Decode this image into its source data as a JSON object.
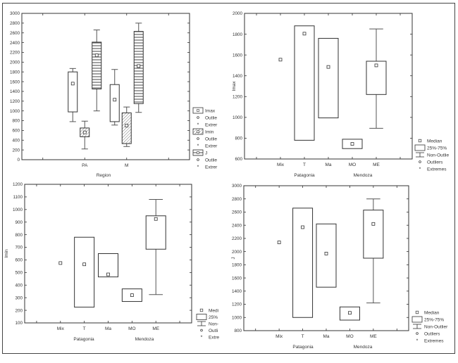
{
  "chart_data": [
    {
      "type": "box",
      "title": "",
      "xlabel": "Region",
      "ylabel": "",
      "ylim": [
        0,
        3000
      ],
      "yticks": [
        0,
        200,
        400,
        600,
        800,
        1000,
        1200,
        1400,
        1600,
        1800,
        2000,
        2200,
        2400,
        2600,
        2800,
        3000
      ],
      "categories": [
        "PA",
        "M"
      ],
      "groups": [],
      "series": [
        {
          "name": "Imax",
          "pattern": "none",
          "boxes": [
            {
              "min": 780,
              "q1": 980,
              "median": 1560,
              "q3": 1800,
              "max": 1870
            },
            {
              "min": 710,
              "q1": 780,
              "median": 1230,
              "q3": 1540,
              "max": 1850
            }
          ]
        },
        {
          "name": "Imin",
          "pattern": "diagonal-hatch",
          "boxes": [
            {
              "min": 220,
              "q1": 470,
              "median": 560,
              "q3": 650,
              "max": 790
            },
            {
              "min": 270,
              "q1": 330,
              "median": 700,
              "q3": 960,
              "max": 1080
            }
          ]
        },
        {
          "name": "J",
          "pattern": "horizontal-stripes",
          "boxes": [
            {
              "min": 1000,
              "q1": 1450,
              "median": 2140,
              "q3": 2410,
              "max": 2660
            },
            {
              "min": 970,
              "q1": 1150,
              "median": 1920,
              "q3": 2630,
              "max": 2800
            }
          ]
        }
      ],
      "legend": [
        "Imax",
        "Outlie",
        "Extrer",
        "Imin",
        "Outlie",
        "Extrer",
        "J",
        "Outlie",
        "Extrer"
      ],
      "legend_placement": "right"
    },
    {
      "type": "box",
      "title": "",
      "xlabel": "",
      "ylabel": "Imax",
      "ylim": [
        600,
        2000
      ],
      "yticks": [
        600,
        800,
        1000,
        1200,
        1400,
        1600,
        1800,
        2000
      ],
      "categories": [
        "Mix",
        "T",
        "Ma",
        "MO",
        "ME"
      ],
      "groups": [
        "Patagonia",
        "Mendoza"
      ],
      "series": [
        {
          "name": "",
          "pattern": "none",
          "boxes": [
            {
              "min": null,
              "q1": null,
              "median": 1555,
              "q3": null,
              "max": null
            },
            {
              "min": null,
              "q1": 780,
              "median": 1805,
              "q3": 1880,
              "max": null
            },
            {
              "min": null,
              "q1": 995,
              "median": 1485,
              "q3": 1760,
              "max": null
            },
            {
              "min": null,
              "q1": 700,
              "median": 745,
              "q3": 790,
              "max": null
            },
            {
              "min": 895,
              "q1": 1220,
              "median": 1500,
              "q3": 1540,
              "max": 1850
            }
          ]
        }
      ],
      "legend": [
        "Median",
        "25%-75%",
        "Non-Outlie",
        "Outliers",
        "Extremes"
      ],
      "legend_placement": "bottom-right"
    },
    {
      "type": "box",
      "title": "",
      "xlabel": "",
      "ylabel": "Imin",
      "ylim": [
        100,
        1200
      ],
      "yticks": [
        100,
        200,
        300,
        400,
        500,
        600,
        700,
        800,
        900,
        1000,
        1100,
        1200
      ],
      "categories": [
        "Mix",
        "T",
        "Ma",
        "MO",
        "ME"
      ],
      "groups": [
        "Patagonia",
        "Mendoza"
      ],
      "series": [
        {
          "name": "",
          "pattern": "none",
          "boxes": [
            {
              "min": null,
              "q1": null,
              "median": 575,
              "q3": null,
              "max": null
            },
            {
              "min": null,
              "q1": 225,
              "median": 565,
              "q3": 780,
              "max": null
            },
            {
              "min": null,
              "q1": 465,
              "median": 485,
              "q3": 650,
              "max": null
            },
            {
              "min": null,
              "q1": 270,
              "median": 320,
              "q3": 370,
              "max": null
            },
            {
              "min": 325,
              "q1": 685,
              "median": 925,
              "q3": 950,
              "max": 1080
            }
          ]
        }
      ],
      "legend": [
        "Medi",
        "25%",
        "Non-",
        "Outli",
        "Extre"
      ],
      "legend_placement": "bottom-right"
    },
    {
      "type": "box",
      "title": "",
      "xlabel": "",
      "ylabel": "J",
      "ylim": [
        800,
        3000
      ],
      "yticks": [
        800,
        1000,
        1200,
        1400,
        1600,
        1800,
        2000,
        2200,
        2400,
        2600,
        2800,
        3000
      ],
      "categories": [
        "Mix",
        "T",
        "Ma",
        "MO",
        "ME"
      ],
      "groups": [
        "Patagonia",
        "Mendoza"
      ],
      "series": [
        {
          "name": "",
          "pattern": "none",
          "boxes": [
            {
              "min": null,
              "q1": null,
              "median": 2140,
              "q3": null,
              "max": null
            },
            {
              "min": null,
              "q1": 1000,
              "median": 2370,
              "q3": 2660,
              "max": null
            },
            {
              "min": null,
              "q1": 1460,
              "median": 1970,
              "q3": 2420,
              "max": null
            },
            {
              "min": null,
              "q1": 960,
              "median": 1070,
              "q3": 1160,
              "max": null
            },
            {
              "min": 1220,
              "q1": 1900,
              "median": 2420,
              "q3": 2630,
              "max": 2800
            }
          ]
        }
      ],
      "legend": [
        "Median",
        "25%-75%",
        "Non-Outlier",
        "Outliers",
        "Extremes"
      ],
      "legend_placement": "bottom-right"
    }
  ]
}
